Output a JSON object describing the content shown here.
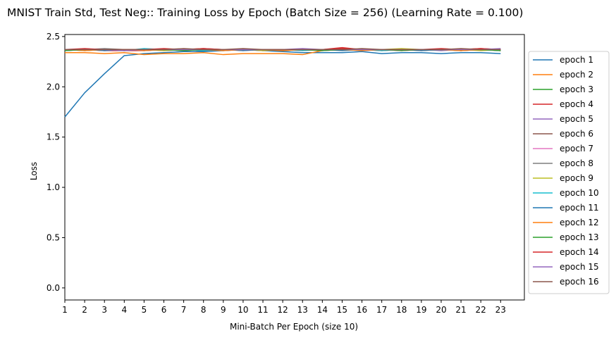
{
  "chart_data": {
    "type": "line",
    "title": "MNIST Train Std, Test Neg:: Training Loss by Epoch (Batch Size = 256) (Learning Rate = 0.100)",
    "xlabel": "Mini-Batch Per Epoch (size 10)",
    "ylabel": "Loss",
    "x": [
      1,
      2,
      3,
      4,
      5,
      6,
      7,
      8,
      9,
      10,
      11,
      12,
      13,
      14,
      15,
      16,
      17,
      18,
      19,
      20,
      21,
      22,
      23
    ],
    "xticks": [
      "1",
      "2",
      "3",
      "4",
      "5",
      "6",
      "7",
      "8",
      "9",
      "10",
      "11",
      "12",
      "13",
      "14",
      "15",
      "16",
      "17",
      "18",
      "19",
      "20",
      "21",
      "22",
      "23"
    ],
    "xlim": [
      1,
      24.2
    ],
    "ylim": [
      -0.12,
      2.52
    ],
    "yticks": [
      "0.0",
      "0.5",
      "1.0",
      "1.5",
      "2.0",
      "2.5"
    ],
    "legend_position": "outside-right",
    "series": [
      {
        "name": "epoch 1",
        "color": "#1f77b4",
        "values": [
          1.7,
          1.94,
          2.13,
          2.31,
          2.33,
          2.34,
          2.35,
          2.35,
          2.36,
          2.37,
          2.36,
          2.35,
          2.34,
          2.34,
          2.34,
          2.35,
          2.33,
          2.34,
          2.34,
          2.33,
          2.34,
          2.34,
          2.33
        ]
      },
      {
        "name": "epoch 2",
        "color": "#ff7f0e",
        "values": [
          2.34,
          2.34,
          2.33,
          2.34,
          2.32,
          2.33,
          2.33,
          2.34,
          2.32,
          2.33,
          2.33,
          2.33,
          2.32,
          2.36,
          2.37,
          2.37,
          2.37,
          2.36,
          2.37,
          2.37,
          2.36,
          2.37,
          2.36
        ]
      },
      {
        "name": "epoch 3",
        "color": "#2ca02c",
        "values": [
          2.37,
          2.37,
          2.37,
          2.37,
          2.37,
          2.37,
          2.37,
          2.36,
          2.37,
          2.37,
          2.37,
          2.36,
          2.37,
          2.37,
          2.38,
          2.37,
          2.37,
          2.37,
          2.37,
          2.37,
          2.36,
          2.37,
          2.37
        ]
      },
      {
        "name": "epoch 4",
        "color": "#d62728",
        "values": [
          2.37,
          2.37,
          2.36,
          2.36,
          2.36,
          2.37,
          2.37,
          2.38,
          2.37,
          2.37,
          2.37,
          2.37,
          2.37,
          2.37,
          2.38,
          2.37,
          2.37,
          2.37,
          2.37,
          2.37,
          2.37,
          2.38,
          2.37
        ]
      },
      {
        "name": "epoch 5",
        "color": "#9467bd",
        "values": [
          2.37,
          2.36,
          2.37,
          2.37,
          2.36,
          2.37,
          2.37,
          2.36,
          2.37,
          2.37,
          2.36,
          2.37,
          2.37,
          2.37,
          2.37,
          2.36,
          2.37,
          2.37,
          2.37,
          2.36,
          2.37,
          2.37,
          2.37
        ]
      },
      {
        "name": "epoch 6",
        "color": "#8c564b",
        "values": [
          2.36,
          2.37,
          2.37,
          2.36,
          2.37,
          2.37,
          2.36,
          2.37,
          2.37,
          2.37,
          2.37,
          2.36,
          2.37,
          2.37,
          2.37,
          2.37,
          2.36,
          2.37,
          2.37,
          2.37,
          2.37,
          2.37,
          2.36
        ]
      },
      {
        "name": "epoch 7",
        "color": "#e377c2",
        "values": [
          2.37,
          2.37,
          2.36,
          2.37,
          2.37,
          2.36,
          2.37,
          2.37,
          2.37,
          2.36,
          2.37,
          2.37,
          2.36,
          2.37,
          2.37,
          2.37,
          2.37,
          2.36,
          2.37,
          2.37,
          2.36,
          2.37,
          2.37
        ]
      },
      {
        "name": "epoch 8",
        "color": "#7f7f7f",
        "values": [
          2.37,
          2.37,
          2.38,
          2.37,
          2.37,
          2.37,
          2.37,
          2.37,
          2.36,
          2.37,
          2.37,
          2.37,
          2.37,
          2.36,
          2.37,
          2.37,
          2.37,
          2.37,
          2.36,
          2.37,
          2.37,
          2.37,
          2.37
        ]
      },
      {
        "name": "epoch 9",
        "color": "#bcbd22",
        "values": [
          2.37,
          2.36,
          2.37,
          2.37,
          2.37,
          2.36,
          2.37,
          2.37,
          2.37,
          2.37,
          2.36,
          2.37,
          2.37,
          2.37,
          2.37,
          2.37,
          2.37,
          2.38,
          2.37,
          2.37,
          2.37,
          2.36,
          2.37
        ]
      },
      {
        "name": "epoch 10",
        "color": "#17becf",
        "values": [
          2.36,
          2.37,
          2.37,
          2.36,
          2.38,
          2.37,
          2.37,
          2.36,
          2.37,
          2.37,
          2.37,
          2.37,
          2.36,
          2.37,
          2.37,
          2.37,
          2.36,
          2.37,
          2.37,
          2.37,
          2.37,
          2.37,
          2.36
        ]
      },
      {
        "name": "epoch 11",
        "color": "#1f77b4",
        "values": [
          2.37,
          2.37,
          2.36,
          2.37,
          2.37,
          2.37,
          2.37,
          2.37,
          2.37,
          2.36,
          2.37,
          2.37,
          2.37,
          2.37,
          2.36,
          2.37,
          2.37,
          2.37,
          2.36,
          2.37,
          2.37,
          2.37,
          2.37
        ]
      },
      {
        "name": "epoch 12",
        "color": "#ff7f0e",
        "values": [
          2.37,
          2.36,
          2.37,
          2.37,
          2.36,
          2.37,
          2.37,
          2.37,
          2.36,
          2.37,
          2.37,
          2.36,
          2.37,
          2.37,
          2.37,
          2.36,
          2.37,
          2.37,
          2.37,
          2.37,
          2.36,
          2.37,
          2.37
        ]
      },
      {
        "name": "epoch 13",
        "color": "#2ca02c",
        "values": [
          2.36,
          2.37,
          2.37,
          2.37,
          2.37,
          2.37,
          2.36,
          2.37,
          2.37,
          2.37,
          2.37,
          2.37,
          2.37,
          2.36,
          2.37,
          2.37,
          2.37,
          2.36,
          2.37,
          2.37,
          2.37,
          2.37,
          2.36
        ]
      },
      {
        "name": "epoch 14",
        "color": "#d62728",
        "values": [
          2.37,
          2.38,
          2.37,
          2.37,
          2.37,
          2.38,
          2.37,
          2.38,
          2.37,
          2.37,
          2.37,
          2.37,
          2.37,
          2.37,
          2.39,
          2.37,
          2.37,
          2.37,
          2.37,
          2.38,
          2.37,
          2.38,
          2.37
        ]
      },
      {
        "name": "epoch 15",
        "color": "#9467bd",
        "values": [
          2.37,
          2.37,
          2.37,
          2.36,
          2.37,
          2.37,
          2.37,
          2.37,
          2.37,
          2.37,
          2.37,
          2.37,
          2.38,
          2.37,
          2.37,
          2.37,
          2.37,
          2.37,
          2.37,
          2.37,
          2.37,
          2.37,
          2.38
        ]
      },
      {
        "name": "epoch 16",
        "color": "#8c564b",
        "values": [
          2.37,
          2.37,
          2.37,
          2.37,
          2.37,
          2.37,
          2.38,
          2.37,
          2.37,
          2.38,
          2.37,
          2.37,
          2.37,
          2.37,
          2.37,
          2.38,
          2.37,
          2.37,
          2.37,
          2.37,
          2.38,
          2.37,
          2.37
        ]
      }
    ]
  }
}
